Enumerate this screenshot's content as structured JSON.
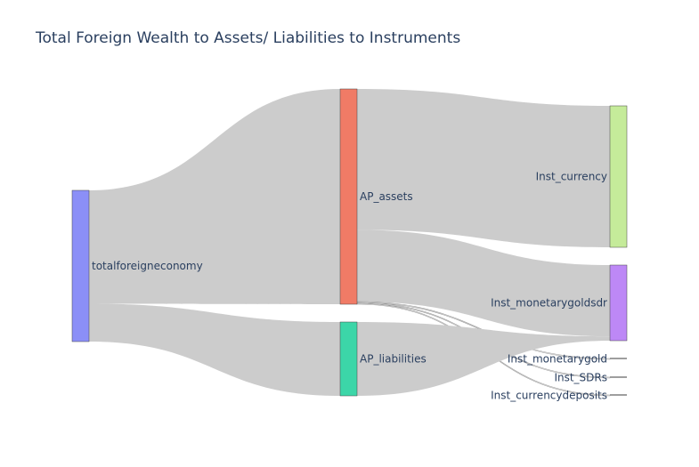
{
  "chart_data": {
    "type": "sankey",
    "title": "Total Foreign Wealth to Assets/ Liabilities to Instruments",
    "nodes": [
      {
        "id": "totalforeigneconomy",
        "label": "totalforeigneconomy",
        "color": "#8b8ff7"
      },
      {
        "id": "AP_assets",
        "label": "AP_assets",
        "color": "#f07b66"
      },
      {
        "id": "AP_liabilities",
        "label": "AP_liabilities",
        "color": "#3cd6a8"
      },
      {
        "id": "Inst_currency",
        "label": "Inst_currency",
        "color": "#c5eb9a"
      },
      {
        "id": "Inst_monetarygoldsdr",
        "label": "Inst_monetarygoldsdr",
        "color": "#bd88f6"
      },
      {
        "id": "Inst_monetarygold",
        "label": "Inst_monetarygold",
        "color": "#7f7f7f"
      },
      {
        "id": "Inst_SDRs",
        "label": "Inst_SDRs",
        "color": "#7f7f7f"
      },
      {
        "id": "Inst_currencydeposits",
        "label": "Inst_currencydeposits",
        "color": "#7f7f7f"
      }
    ],
    "links": [
      {
        "source": "totalforeigneconomy",
        "target": "AP_assets",
        "value": 75
      },
      {
        "source": "totalforeigneconomy",
        "target": "AP_liabilities",
        "value": 25
      },
      {
        "source": "AP_assets",
        "target": "Inst_currency",
        "value": 49
      },
      {
        "source": "AP_assets",
        "target": "Inst_monetarygoldsdr",
        "value": 25
      },
      {
        "source": "AP_assets",
        "target": "Inst_monetarygold",
        "value": 0.3
      },
      {
        "source": "AP_assets",
        "target": "Inst_SDRs",
        "value": 0.3
      },
      {
        "source": "AP_assets",
        "target": "Inst_currencydeposits",
        "value": 0.3
      },
      {
        "source": "AP_liabilities",
        "target": "Inst_monetarygoldsdr",
        "value": 1.5
      }
    ],
    "link_color": "#cccccc"
  }
}
